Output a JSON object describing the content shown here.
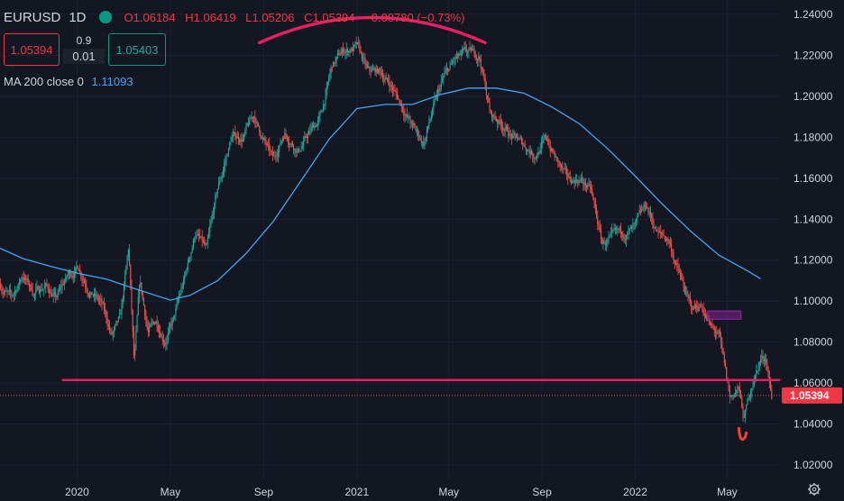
{
  "header": {
    "symbol": "EURUSD",
    "timeframe": "1D",
    "open": "O1.06184",
    "high": "H1.06419",
    "low": "L1.05206",
    "close": "C1.05394",
    "change": "−0.00780 (−0.73%)"
  },
  "trade": {
    "sell": "1.05394",
    "spread_top": "0.9",
    "spread_bottom": "0.01",
    "buy": "1.05403"
  },
  "indicator": {
    "label": "MA 200 close 0",
    "value": "1.11093",
    "color": "#42a5f5"
  },
  "colors": {
    "up": "#26a69a",
    "down": "#ef5350",
    "annotation": "#e91e63",
    "rect": "#9c27b0"
  },
  "icons": {
    "settings": "gear-icon"
  },
  "chart_data": {
    "type": "candlestick",
    "y_ticks": [
      "1.24000",
      "1.22000",
      "1.20000",
      "1.18000",
      "1.16000",
      "1.14000",
      "1.12000",
      "1.10000",
      "1.08000",
      "1.06000",
      "1.04000",
      "1.02000"
    ],
    "y_tick_values": [
      1.24,
      1.22,
      1.2,
      1.18,
      1.16,
      1.14,
      1.12,
      1.1,
      1.08,
      1.06,
      1.04,
      1.02
    ],
    "ylim": [
      1.013,
      1.247
    ],
    "x_ticks": [
      "2020",
      "May",
      "Sep",
      "2021",
      "May",
      "Sep",
      "2022",
      "May"
    ],
    "x_tick_times": [
      2019.995,
      2020.33,
      2020.665,
      2021.0,
      2021.33,
      2021.665,
      2022.0,
      2022.33
    ],
    "xlim": [
      2019.718,
      2022.523
    ],
    "last_price_label": "1.05394",
    "last_price": 1.05394,
    "price_path": [
      [
        2019.72,
        1.108
      ],
      [
        2019.76,
        1.101
      ],
      [
        2019.8,
        1.113
      ],
      [
        2019.84,
        1.104
      ],
      [
        2019.88,
        1.108
      ],
      [
        2019.92,
        1.101
      ],
      [
        2019.96,
        1.112
      ],
      [
        2020.0,
        1.117
      ],
      [
        2020.04,
        1.106
      ],
      [
        2020.08,
        1.099
      ],
      [
        2020.12,
        1.083
      ],
      [
        2020.15,
        1.09
      ],
      [
        2020.18,
        1.125
      ],
      [
        2020.2,
        1.068
      ],
      [
        2020.22,
        1.108
      ],
      [
        2020.25,
        1.085
      ],
      [
        2020.28,
        1.09
      ],
      [
        2020.31,
        1.082
      ],
      [
        2020.34,
        1.09
      ],
      [
        2020.38,
        1.11
      ],
      [
        2020.42,
        1.134
      ],
      [
        2020.46,
        1.124
      ],
      [
        2020.5,
        1.154
      ],
      [
        2020.55,
        1.18
      ],
      [
        2020.59,
        1.18
      ],
      [
        2020.63,
        1.19
      ],
      [
        2020.66,
        1.18
      ],
      [
        2020.7,
        1.168
      ],
      [
        2020.74,
        1.183
      ],
      [
        2020.79,
        1.174
      ],
      [
        2020.83,
        1.182
      ],
      [
        2020.87,
        1.19
      ],
      [
        2020.91,
        1.214
      ],
      [
        2020.95,
        1.222
      ],
      [
        2021.0,
        1.224
      ],
      [
        2021.04,
        1.211
      ],
      [
        2021.08,
        1.212
      ],
      [
        2021.12,
        1.206
      ],
      [
        2021.16,
        1.196
      ],
      [
        2021.2,
        1.185
      ],
      [
        2021.24,
        1.177
      ],
      [
        2021.27,
        1.192
      ],
      [
        2021.31,
        1.208
      ],
      [
        2021.35,
        1.217
      ],
      [
        2021.39,
        1.22
      ],
      [
        2021.44,
        1.22
      ],
      [
        2021.48,
        1.191
      ],
      [
        2021.52,
        1.187
      ],
      [
        2021.56,
        1.18
      ],
      [
        2021.6,
        1.176
      ],
      [
        2021.64,
        1.172
      ],
      [
        2021.68,
        1.179
      ],
      [
        2021.72,
        1.168
      ],
      [
        2021.76,
        1.158
      ],
      [
        2021.8,
        1.16
      ],
      [
        2021.84,
        1.154
      ],
      [
        2021.88,
        1.128
      ],
      [
        2021.92,
        1.13
      ],
      [
        2021.96,
        1.133
      ],
      [
        2022.0,
        1.135
      ],
      [
        2022.04,
        1.146
      ],
      [
        2022.08,
        1.133
      ],
      [
        2022.12,
        1.13
      ],
      [
        2022.16,
        1.112
      ],
      [
        2022.2,
        1.096
      ],
      [
        2022.24,
        1.098
      ],
      [
        2022.27,
        1.087
      ],
      [
        2022.3,
        1.083
      ],
      [
        2022.34,
        1.052
      ],
      [
        2022.37,
        1.058
      ],
      [
        2022.39,
        1.042
      ],
      [
        2022.42,
        1.06
      ],
      [
        2022.45,
        1.072
      ],
      [
        2022.47,
        1.072
      ],
      [
        2022.49,
        1.054
      ]
    ],
    "ma_path": [
      [
        2019.718,
        1.1258
      ],
      [
        2019.8,
        1.1208
      ],
      [
        2019.9,
        1.117
      ],
      [
        2020.0,
        1.1135
      ],
      [
        2020.1,
        1.1108
      ],
      [
        2020.2,
        1.1062
      ],
      [
        2020.33,
        1.1005
      ],
      [
        2020.4,
        1.1028
      ],
      [
        2020.5,
        1.11
      ],
      [
        2020.6,
        1.123
      ],
      [
        2020.7,
        1.139
      ],
      [
        2020.8,
        1.159
      ],
      [
        2020.9,
        1.179
      ],
      [
        2021.0,
        1.194
      ],
      [
        2021.1,
        1.196
      ],
      [
        2021.2,
        1.196
      ],
      [
        2021.3,
        1.2008
      ],
      [
        2021.4,
        1.204
      ],
      [
        2021.5,
        1.204
      ],
      [
        2021.6,
        1.2015
      ],
      [
        2021.7,
        1.1948
      ],
      [
        2021.8,
        1.1865
      ],
      [
        2021.9,
        1.1745
      ],
      [
        2022.0,
        1.161
      ],
      [
        2022.1,
        1.147
      ],
      [
        2022.2,
        1.134
      ],
      [
        2022.3,
        1.1225
      ],
      [
        2022.4,
        1.115
      ],
      [
        2022.45,
        1.1109
      ]
    ],
    "annotations": {
      "support_level": {
        "y": 1.0615,
        "x": [
          2019.94,
          2022.52
        ]
      },
      "top_arc": {
        "x": [
          2020.65,
          2021.46
        ],
        "apex": 1.2385,
        "base": 1.2262
      },
      "rectangle": {
        "x": [
          2022.26,
          2022.38
        ],
        "y": [
          1.0912,
          1.0952
        ]
      },
      "low_marker": {
        "x": 2022.385,
        "y": 1.0335
      }
    }
  }
}
